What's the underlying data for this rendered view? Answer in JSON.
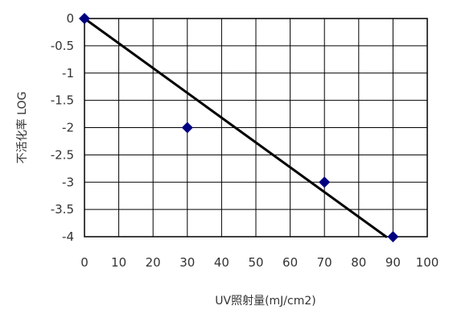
{
  "chart_data": {
    "type": "scatter",
    "xlabel": "UV照射量(mJ/cm2)",
    "ylabel": "不活化率 LOG",
    "xlim": [
      0,
      100
    ],
    "ylim": [
      -4,
      0
    ],
    "x_ticks": [
      "0",
      "10",
      "20",
      "30",
      "40",
      "50",
      "60",
      "70",
      "80",
      "90",
      "100"
    ],
    "y_ticks": [
      "0",
      "-0.5",
      "-1",
      "-1.5",
      "-2",
      "-2.5",
      "-3",
      "-3.5",
      "-4"
    ],
    "grid": true,
    "series": [
      {
        "points": [
          {
            "x": 0,
            "y": 0
          },
          {
            "x": 30,
            "y": -2
          },
          {
            "x": 70,
            "y": -3
          },
          {
            "x": 90,
            "y": -4
          }
        ],
        "color": "#000080",
        "marker": "diamond"
      }
    ],
    "trendline": {
      "from": {
        "x": 0,
        "y": 0
      },
      "to": {
        "x": 88,
        "y": -4
      },
      "color": "#000000"
    }
  }
}
